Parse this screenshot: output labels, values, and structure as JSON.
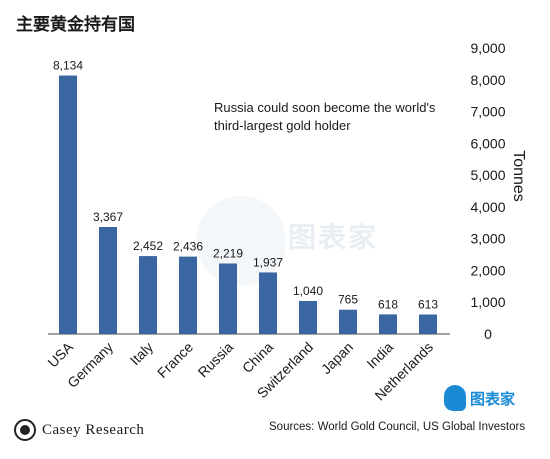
{
  "title": "主要黄金持有国",
  "source": "Sources: World Gold Council, US Global Investors",
  "logos": {
    "casey": "Casey Research",
    "tubiaojia": "图表家",
    "watermark": "图表家"
  },
  "colors": {
    "bar": "#3a67a1",
    "text": "#1a1a1a"
  },
  "chart_data": {
    "type": "bar",
    "title": "主要黄金持有国",
    "categories": [
      "USA",
      "Germany",
      "Italy",
      "France",
      "Russia",
      "China",
      "Switzerland",
      "Japan",
      "India",
      "Netherlands"
    ],
    "values": [
      8134,
      3367,
      2452,
      2436,
      2219,
      1937,
      1040,
      765,
      618,
      613
    ],
    "value_labels": [
      "8,134",
      "3,367",
      "2,452",
      "2,436",
      "2,219",
      "1,937",
      "1,040",
      "765",
      "618",
      "613"
    ],
    "ylabel": "Tonnes",
    "ylim": [
      0,
      9000
    ],
    "y_ticks": [
      0,
      1000,
      2000,
      3000,
      4000,
      5000,
      6000,
      7000,
      8000,
      9000
    ],
    "y_tick_labels": [
      "0",
      "1,000",
      "2,000",
      "3,000",
      "4,000",
      "5,000",
      "6,000",
      "7,000",
      "8,000",
      "9,000"
    ],
    "y_axis_side": "right",
    "grid": false,
    "annotation": [
      "Russia could soon become the world's",
      "third-largest gold holder"
    ]
  }
}
